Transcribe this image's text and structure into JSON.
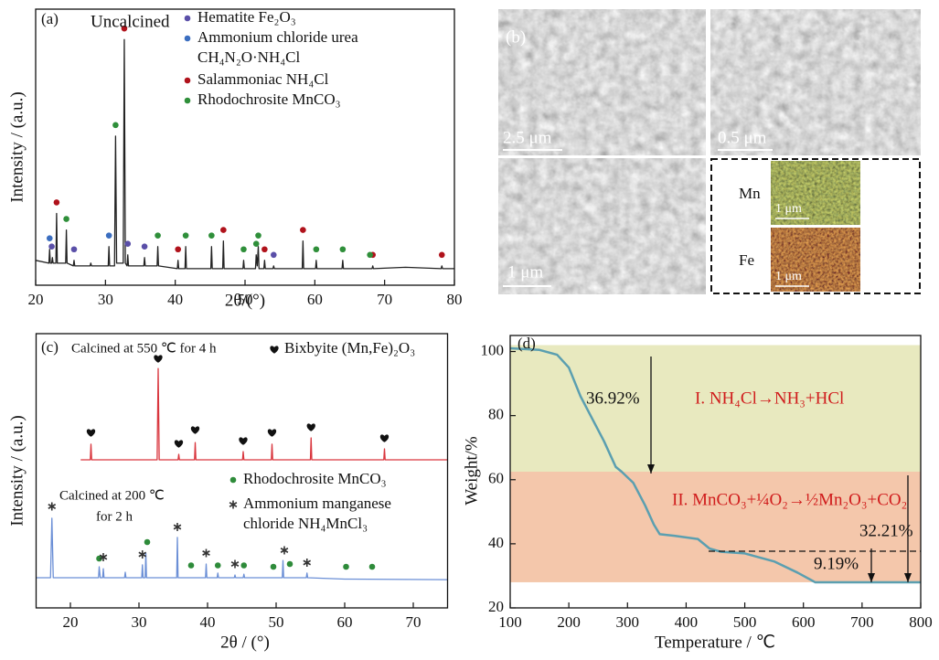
{
  "chart_data": [
    {
      "type": "line",
      "label": "(a)",
      "title": "Uncalcined",
      "xlabel": "2θ/(°)",
      "ylabel": "Intensity / (a.u.)",
      "xlim": [
        20,
        80
      ],
      "xticks": [
        20,
        30,
        40,
        50,
        60,
        70,
        80
      ],
      "ylim": [
        0,
        100
      ],
      "series": [
        {
          "color": "#222222",
          "x": [
            20,
            21.9,
            22.0,
            22.1,
            22.3,
            22.4,
            22.5,
            22.9,
            23.0,
            23.1,
            24.3,
            24.4,
            24.5,
            25.4,
            25.5,
            25.6,
            27.8,
            27.9,
            28.0,
            30.4,
            30.5,
            30.6,
            31.3,
            31.45,
            31.6,
            32.55,
            32.7,
            32.85,
            33.1,
            33.2,
            33.3,
            35.5,
            35.6,
            35.7,
            37.4,
            37.5,
            37.6,
            40.3,
            40.4,
            40.5,
            41.4,
            41.5,
            41.6,
            45.1,
            45.2,
            45.3,
            46.8,
            46.9,
            47.0,
            49.7,
            49.8,
            49.9,
            51.5,
            51.6,
            51.75,
            51.9,
            52.0,
            52.7,
            52.8,
            52.9,
            54.0,
            54.1,
            54.2,
            58.2,
            58.3,
            58.4,
            60.1,
            60.2,
            60.3,
            63.9,
            64.0,
            64.1,
            68.2,
            68.3,
            68.4,
            73,
            78.1,
            78.2,
            78.3,
            80
          ],
          "values": [
            9,
            8,
            13,
            8,
            8,
            10,
            8,
            8,
            26,
            8,
            8,
            20,
            8,
            7,
            9,
            7,
            7,
            8,
            7,
            7,
            14,
            7,
            7,
            54,
            8,
            8,
            89,
            8,
            7,
            11,
            7,
            7,
            10,
            7,
            7,
            14,
            7,
            6,
            9,
            6,
            6,
            14,
            6,
            6,
            14,
            6,
            6,
            16,
            6,
            6,
            9,
            6,
            6,
            11,
            7,
            14,
            6,
            6,
            9,
            6,
            6,
            7,
            6,
            6,
            16,
            6,
            6,
            9,
            6,
            6,
            9,
            6,
            6,
            7,
            6,
            6.5,
            6,
            7,
            6,
            6
          ]
        }
      ],
      "markers": [
        {
          "name": [
            "Hematite Fe₂O₃"
          ],
          "color": "#5a4fa8",
          "marker": "circle",
          "x": [
            22.3,
            25.5,
            33.2,
            35.6,
            54.1
          ],
          "values": [
            14,
            13,
            15,
            14,
            11
          ]
        },
        {
          "name": [
            "Ammonium chloride urea",
            "CH₄N₂O·NH₄Cl"
          ],
          "color": "#3b6ec0",
          "marker": "circle",
          "x": [
            22.0,
            30.5
          ],
          "values": [
            17,
            18
          ]
        },
        {
          "name": [
            "Salammoniac NH₄Cl"
          ],
          "color": "#b0121b",
          "marker": "circle",
          "x": [
            23.0,
            32.7,
            40.4,
            46.9,
            52.8,
            58.3,
            68.3,
            78.2
          ],
          "values": [
            30,
            93,
            13,
            20,
            13,
            20,
            11,
            11
          ]
        },
        {
          "name": [
            "Rhodochrosite MnCO₃"
          ],
          "color": "#2f8f3a",
          "marker": "circle",
          "x": [
            24.4,
            31.45,
            37.5,
            41.5,
            45.2,
            49.8,
            51.6,
            51.9,
            60.2,
            64.0,
            67.9
          ],
          "values": [
            24,
            58,
            18,
            18,
            18,
            13,
            15,
            18,
            13,
            13,
            11
          ]
        }
      ]
    },
    {
      "type": "line",
      "label": "(c)",
      "xlabel": "2θ / (°)",
      "ylabel": "Intensity / (a.u.)",
      "xlim": [
        15,
        75
      ],
      "xticks": [
        20,
        30,
        40,
        50,
        60,
        70
      ],
      "ylim": [
        0,
        100
      ],
      "annotations": [
        "Calcined at 550 ℃ for 4 h",
        "Calcined at 200 ℃",
        "for 2 h"
      ],
      "series": [
        {
          "color": "#d9363e",
          "x": [
            21.5,
            22.9,
            23.0,
            23.1,
            32.65,
            32.8,
            32.95,
            35.7,
            35.8,
            35.9,
            38.1,
            38.2,
            38.3,
            45.1,
            45.2,
            45.3,
            49.3,
            49.4,
            49.5,
            55.0,
            55.1,
            55.2,
            65.7,
            65.8,
            65.9,
            75
          ],
          "values": [
            54,
            54,
            59.7,
            54,
            54,
            87.3,
            54,
            54,
            56,
            54,
            54,
            60.3,
            54,
            54,
            57,
            54,
            54,
            59.7,
            54,
            54,
            62,
            54,
            54,
            58,
            54,
            54
          ]
        },
        {
          "color": "#6b8fd6",
          "x": [
            15,
            17.1,
            17.3,
            17.5,
            20,
            24.1,
            24.2,
            24.35,
            24.7,
            24.8,
            24.9,
            27.9,
            28.0,
            28.1,
            30.4,
            30.5,
            30.6,
            30.9,
            31.0,
            31.1,
            35.5,
            35.6,
            35.7,
            39.7,
            39.8,
            39.9,
            41.4,
            41.5,
            41.6,
            43.9,
            44.0,
            44.1,
            45.2,
            45.3,
            45.4,
            50.9,
            51.0,
            51.1,
            54.4,
            54.5,
            54.6,
            60,
            75
          ],
          "values": [
            11,
            11,
            32.7,
            11,
            11,
            11,
            15,
            11,
            11,
            14.3,
            11,
            11,
            13,
            11,
            11,
            15.7,
            11,
            11,
            20,
            11,
            11,
            25.7,
            11,
            11,
            16,
            11,
            11,
            12.7,
            11,
            11,
            12,
            11,
            11,
            12.3,
            11,
            11,
            17.3,
            11,
            11,
            12.7,
            11,
            10.5,
            10.3
          ]
        }
      ],
      "markers": [
        {
          "name": [
            "Bixbyite (Mn,Fe)₂O₃"
          ],
          "color": "#111111",
          "marker": "heart",
          "x": [
            23.0,
            32.8,
            35.8,
            38.2,
            45.2,
            49.4,
            55.1,
            65.8
          ],
          "values": [
            64,
            91,
            60,
            65,
            61,
            64,
            66,
            62
          ]
        },
        {
          "name": [
            "Rhodochrosite MnCO₃"
          ],
          "color": "#2e8b3a",
          "marker": "circle",
          "x": [
            24.2,
            31.2,
            37.6,
            41.5,
            45.3,
            49.6,
            52.0,
            60.2,
            64.0
          ],
          "values": [
            18,
            24,
            15.5,
            15.5,
            15.5,
            15,
            16,
            15,
            15
          ]
        },
        {
          "name": [
            "Ammonium manganese",
            "chloride NH₄MnCl₃"
          ],
          "color": "#333333",
          "marker": "asterisk",
          "x": [
            17.3,
            24.8,
            30.5,
            35.6,
            39.8,
            44.0,
            51.2,
            54.5
          ],
          "values": [
            37,
            18.5,
            19.5,
            29.5,
            20,
            16,
            21,
            16.5
          ]
        }
      ]
    },
    {
      "type": "line",
      "label": "(d)",
      "xlabel": "Temperature / ℃",
      "ylabel": "Weight/%",
      "xlim": [
        100,
        800
      ],
      "xticks": [
        100,
        200,
        300,
        400,
        500,
        600,
        700,
        800
      ],
      "ylim": [
        20,
        105
      ],
      "yticks": [
        20,
        40,
        60,
        80,
        100
      ],
      "bands": [
        {
          "from": 62.5,
          "to": 102,
          "color": "#e8e9bf"
        },
        {
          "from": 28,
          "to": 62.5,
          "color": "#f4c7ab"
        }
      ],
      "annotations": [
        "36.92%",
        "I. NH₄Cl→NH₃+HCl",
        "II. MnCO₃+¼O₂→½Mn₂O₃+CO₂",
        "32.21%",
        "9.19%"
      ],
      "series": [
        {
          "color": "#5b9fb0",
          "x": [
            100,
            150,
            180,
            200,
            220,
            240,
            260,
            280,
            290,
            310,
            330,
            345,
            355,
            380,
            420,
            440,
            460,
            500,
            550,
            590,
            620,
            700,
            800
          ],
          "values": [
            101,
            100.5,
            99,
            95,
            86,
            79,
            72,
            64,
            62.5,
            59,
            52,
            46,
            43,
            42.5,
            41.5,
            38.5,
            37.5,
            37,
            34.5,
            31,
            28,
            28,
            28
          ]
        }
      ]
    }
  ],
  "micrographs": {
    "label": "(b)",
    "scale_bars": [
      "2.5 μm",
      "0.5 μm",
      "1 μm"
    ],
    "map": {
      "elements": [
        "Mn",
        "Fe"
      ],
      "scale_bars": [
        "1 μm",
        "1 μm"
      ]
    }
  }
}
